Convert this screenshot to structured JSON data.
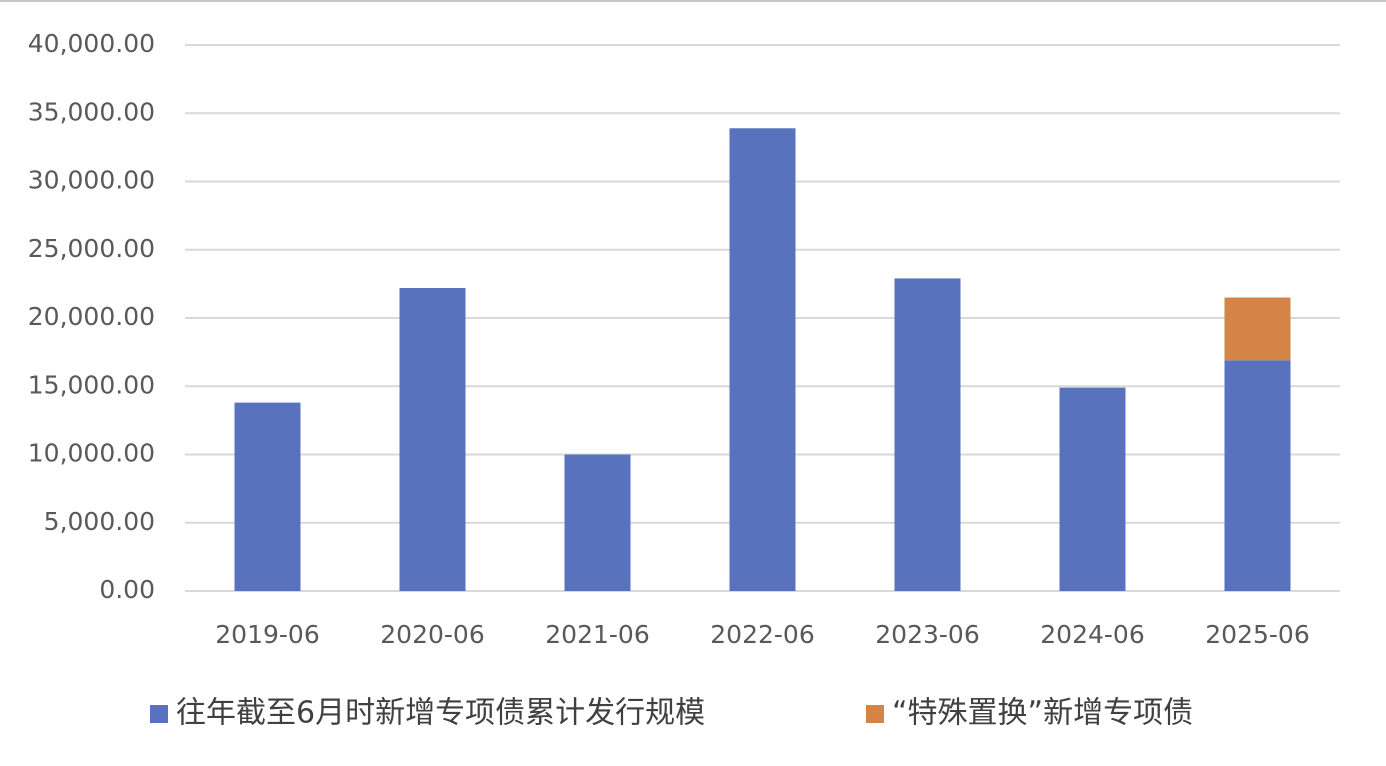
{
  "chart_data": {
    "type": "bar",
    "stacked": true,
    "categories": [
      "2019-06",
      "2020-06",
      "2021-06",
      "2022-06",
      "2023-06",
      "2024-06",
      "2025-06"
    ],
    "series": [
      {
        "name": "往年截至6月时新增专项债累计发行规模",
        "color": "#5872bd",
        "values": [
          13800,
          22200,
          10000,
          33900,
          22900,
          14900,
          16900
        ]
      },
      {
        "name": "“特殊置换”新增专项债",
        "color": "#d38446",
        "values": [
          null,
          null,
          null,
          null,
          null,
          null,
          4600
        ]
      }
    ],
    "ylim": [
      0,
      40000
    ],
    "yticks": [
      {
        "value": 0,
        "label": "0.00"
      },
      {
        "value": 5000,
        "label": "5,000.00"
      },
      {
        "value": 10000,
        "label": "10,000.00"
      },
      {
        "value": 15000,
        "label": "15,000.00"
      },
      {
        "value": 20000,
        "label": "20,000.00"
      },
      {
        "value": 25000,
        "label": "25,000.00"
      },
      {
        "value": 30000,
        "label": "30,000.00"
      },
      {
        "value": 35000,
        "label": "35,000.00"
      },
      {
        "value": 40000,
        "label": "40,000.00"
      }
    ],
    "grid": true,
    "legend": "bottom"
  }
}
